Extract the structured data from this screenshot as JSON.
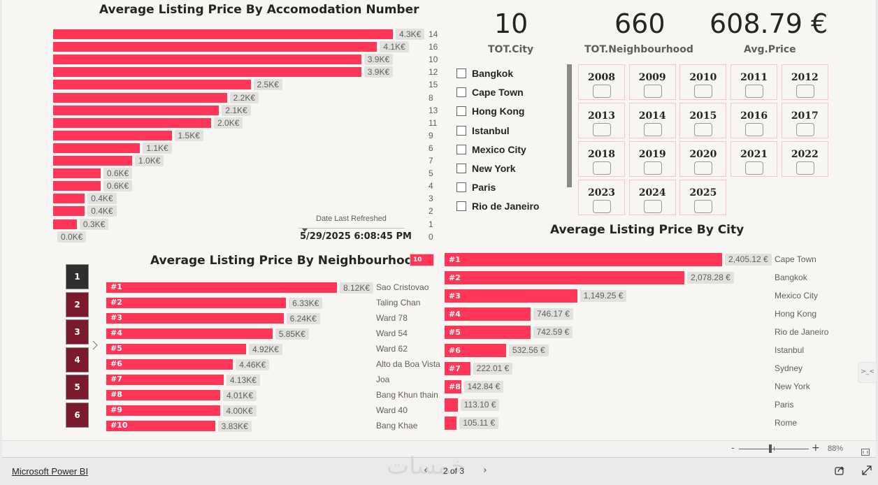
{
  "accommodation_chart": {
    "title": "Average Listing Price By Accomodation Number",
    "type": "bar",
    "categories": [
      "14",
      "16",
      "10",
      "12",
      "15",
      "8",
      "13",
      "11",
      "9",
      "6",
      "7",
      "5",
      "4",
      "3",
      "2",
      "1",
      "0"
    ],
    "values": [
      4.3,
      4.1,
      3.9,
      3.9,
      2.5,
      2.2,
      2.1,
      2.0,
      1.5,
      1.1,
      1.0,
      0.6,
      0.6,
      0.4,
      0.4,
      0.3,
      0.0
    ],
    "labels": [
      "4.3K€",
      "4.1K€",
      "3.9K€",
      "3.9K€",
      "2.5K€",
      "2.2K€",
      "2.1K€",
      "2.0K€",
      "1.5K€",
      "1.1K€",
      "1.0K€",
      "0.6K€",
      "0.6K€",
      "0.4K€",
      "0.4K€",
      "0.3K€",
      "0.0K€"
    ],
    "unit": "K€"
  },
  "refresh": {
    "label": "Date Last Refreshed",
    "value": "5/29/2025 6:08:45 PM"
  },
  "kpis": [
    {
      "value": "10",
      "label": "TOT.City"
    },
    {
      "value": "660",
      "label": "TOT.Neighbourhood"
    },
    {
      "value": "608.79 €",
      "label": "Avg.Price"
    }
  ],
  "city_slicer": [
    "Bangkok",
    "Cape Town",
    "Hong Kong",
    "Istanbul",
    "Mexico City",
    "New York",
    "Paris",
    "Rio de Janeiro"
  ],
  "year_slicer": [
    "2008",
    "2009",
    "2010",
    "2011",
    "2012",
    "2013",
    "2014",
    "2015",
    "2016",
    "2017",
    "2018",
    "2019",
    "2020",
    "2021",
    "2022",
    "2023",
    "2024",
    "2025"
  ],
  "neighbourhood_chart": {
    "title": "Average Listing Price By Neighbourhood",
    "topn_badge": "10",
    "type": "bar",
    "categories": [
      "Sao Cristovao",
      "Taling Chan",
      "Ward 78",
      "Ward 54",
      "Ward 62",
      "Alto da Boa Vista",
      "Joa",
      "Bang Khun thain",
      "Ward 40",
      "Bang Khae"
    ],
    "ranks": [
      "#1",
      "#2",
      "#3",
      "#4",
      "#5",
      "#6",
      "#7",
      "#8",
      "#9",
      "#10"
    ],
    "values": [
      8.12,
      6.33,
      6.24,
      5.85,
      4.92,
      4.46,
      4.13,
      4.01,
      4.0,
      3.83
    ],
    "labels": [
      "8.12K€",
      "6.33K€",
      "6.24K€",
      "5.85K€",
      "4.92K€",
      "4.46K€",
      "4.13K€",
      "4.01K€",
      "4.00K€",
      "3.83K€"
    ],
    "unit": "K€"
  },
  "page_buttons": [
    "1",
    "2",
    "3",
    "4",
    "5",
    "6"
  ],
  "city_chart": {
    "title": "Average Listing Price By City",
    "type": "bar",
    "categories": [
      "Cape Town",
      "Bangkok",
      "Mexico City",
      "Hong Kong",
      "Rio de Janeiro",
      "Istanbul",
      "Sydney",
      "New York",
      "Paris",
      "Rome"
    ],
    "ranks": [
      "#1",
      "#2",
      "#3",
      "#4",
      "#5",
      "#6",
      "#7",
      "#8",
      "",
      ""
    ],
    "values": [
      2405.12,
      2078.28,
      1149.25,
      746.17,
      742.59,
      532.56,
      222.01,
      142.84,
      113.1,
      105.11
    ],
    "labels": [
      "2,405.12 €",
      "2,078.28 €",
      "1,149.25 €",
      "746.17 €",
      "742.59 €",
      "532.56 €",
      "222.01 €",
      "142.84 €",
      "113.10 €",
      "105.11 €"
    ],
    "unit": "€"
  },
  "zoom": {
    "minus": "-",
    "plus": "+",
    "level": "88%",
    "fraction": 0.45
  },
  "footer": {
    "brand_link": "Microsoft Power BI",
    "page_indicator": "2 of 3",
    "watermark": "خمسات"
  }
}
